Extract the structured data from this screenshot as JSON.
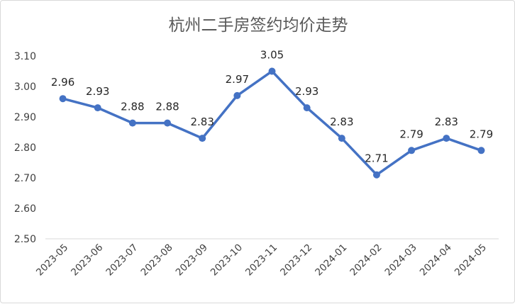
{
  "chart_data": {
    "type": "line",
    "title": "杭州二手房签约均价走势",
    "xlabel": "",
    "ylabel": "",
    "categories": [
      "2023-05",
      "2023-06",
      "2023-07",
      "2023-08",
      "2023-09",
      "2023-10",
      "2023-11",
      "2023-12",
      "2024-01",
      "2024-02",
      "2024-03",
      "2024-04",
      "2024-05"
    ],
    "values": [
      2.96,
      2.93,
      2.88,
      2.88,
      2.83,
      2.97,
      3.05,
      2.93,
      2.83,
      2.71,
      2.79,
      2.83,
      2.79
    ],
    "value_labels": [
      "2.96",
      "2.93",
      "2.88",
      "2.88",
      "2.83",
      "2.97",
      "3.05",
      "2.93",
      "2.83",
      "2.71",
      "2.79",
      "2.83",
      "2.79"
    ],
    "yticks": [
      "2.50",
      "2.60",
      "2.70",
      "2.80",
      "2.90",
      "3.00",
      "3.10"
    ],
    "ylim": [
      2.5,
      3.1
    ],
    "grid": false,
    "legend": "none",
    "line_color": "#4472C4"
  }
}
